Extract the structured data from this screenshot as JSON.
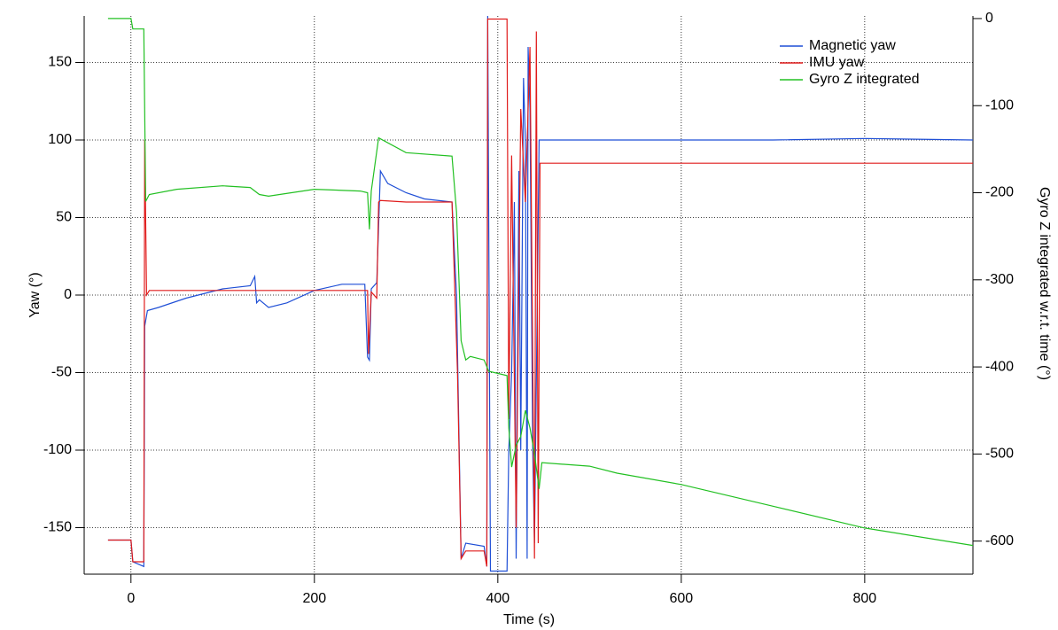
{
  "chart_data": {
    "type": "line",
    "xlabel": "Time (s)",
    "ylabel": "Yaw (°)",
    "y2label": "Gyro Z integrated w.r.t. time (°)",
    "xlim": [
      -51,
      918
    ],
    "ylim": [
      -180,
      180
    ],
    "y2lim": [
      -638,
      3
    ],
    "xticks": [
      0,
      200,
      400,
      600,
      800
    ],
    "yticks": [
      -150,
      -100,
      -50,
      0,
      50,
      100,
      150
    ],
    "y2ticks": [
      -600,
      -500,
      -400,
      -300,
      -200,
      -100,
      0
    ],
    "grid": true,
    "legend": "upper right",
    "series": [
      {
        "name": "Magnetic yaw",
        "color": "#1f4fd6",
        "x": [
          -25,
          0,
          2,
          14,
          15,
          18,
          30,
          60,
          100,
          130,
          135,
          137,
          140,
          150,
          170,
          200,
          230,
          255,
          258,
          260,
          262,
          268,
          272,
          280,
          300,
          320,
          350,
          355,
          360,
          365,
          385,
          388,
          389,
          392,
          410,
          412,
          415,
          418,
          420,
          423,
          425,
          428,
          430,
          432,
          433,
          435,
          438,
          440,
          445,
          500,
          600,
          700,
          800,
          918
        ],
        "values": [
          -158,
          -158,
          -172,
          -175,
          -20,
          -10,
          -8,
          -2,
          4,
          6,
          12,
          -5,
          -3,
          -8,
          -5,
          3,
          7,
          7,
          -40,
          -42,
          4,
          8,
          80,
          72,
          66,
          62,
          60,
          0,
          -170,
          -160,
          -162,
          -175,
          180,
          -178,
          -178,
          -100,
          -50,
          60,
          -170,
          80,
          -100,
          140,
          100,
          -170,
          160,
          120,
          -100,
          -160,
          100,
          100,
          100,
          100,
          101,
          100
        ]
      },
      {
        "name": "IMU yaw",
        "color": "#e01b1b",
        "x": [
          -25,
          0,
          2,
          14,
          15,
          17,
          20,
          100,
          200,
          258,
          259,
          262,
          265,
          268,
          270,
          272,
          300,
          350,
          356,
          360,
          365,
          385,
          388,
          389,
          400,
          410,
          412,
          415,
          420,
          425,
          430,
          435,
          440,
          442,
          444,
          446,
          500,
          600,
          800,
          918
        ],
        "values": [
          -158,
          -158,
          -172,
          -172,
          100,
          0,
          3,
          3,
          3,
          3,
          -38,
          2,
          0,
          -2,
          60,
          61,
          60,
          60,
          -50,
          -170,
          -165,
          -165,
          -175,
          178,
          178,
          178,
          -80,
          90,
          -150,
          120,
          60,
          160,
          -170,
          170,
          -160,
          85,
          85,
          85,
          85,
          85
        ]
      },
      {
        "name": "Gyro Z integrated",
        "color": "#22c022",
        "axis": "y2",
        "x": [
          -25,
          0,
          2,
          14,
          16,
          20,
          50,
          100,
          130,
          140,
          150,
          200,
          250,
          258,
          260,
          262,
          270,
          300,
          350,
          355,
          360,
          365,
          370,
          385,
          390,
          410,
          412,
          415,
          420,
          425,
          430,
          435,
          440,
          445,
          448,
          500,
          530,
          600,
          700,
          800,
          918
        ],
        "values": [
          0,
          0,
          -12,
          -12,
          -210,
          -202,
          -196,
          -192,
          -194,
          -202,
          -204,
          -196,
          -198,
          -200,
          -242,
          -198,
          -137,
          -154,
          -158,
          -222,
          -370,
          -392,
          -388,
          -392,
          -405,
          -410,
          -470,
          -515,
          -490,
          -480,
          -450,
          -470,
          -500,
          -540,
          -510,
          -514,
          -522,
          -535,
          -560,
          -585,
          -605
        ]
      }
    ]
  }
}
